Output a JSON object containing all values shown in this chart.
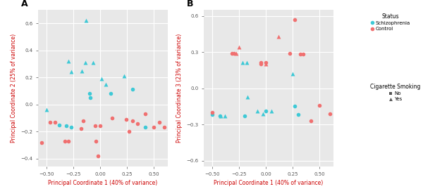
{
  "panel_A": {
    "label": "A",
    "xlabel": "Principal Coordinate 1 (40% of variance)",
    "ylabel": "Principal Coordinate 2 (25% of variance)",
    "xlim": [
      -0.58,
      0.63
    ],
    "ylim": [
      -0.46,
      0.7
    ],
    "xticks": [
      -0.5,
      -0.25,
      0.0,
      0.25,
      0.5
    ],
    "yticks": [
      -0.4,
      -0.2,
      0.0,
      0.2,
      0.4,
      0.6
    ],
    "schizophrenia_circle": [
      [
        -0.38,
        -0.15
      ],
      [
        -0.32,
        -0.16
      ],
      [
        -0.27,
        -0.17
      ],
      [
        -0.1,
        0.08
      ],
      [
        -0.09,
        0.05
      ],
      [
        0.1,
        0.08
      ],
      [
        0.3,
        0.11
      ],
      [
        0.42,
        -0.17
      ]
    ],
    "schizophrenia_triangle": [
      [
        -0.5,
        -0.04
      ],
      [
        -0.3,
        0.32
      ],
      [
        -0.27,
        0.24
      ],
      [
        -0.17,
        0.25
      ],
      [
        -0.14,
        0.31
      ],
      [
        -0.13,
        0.62
      ],
      [
        -0.07,
        0.31
      ],
      [
        0.01,
        0.19
      ],
      [
        0.05,
        0.15
      ],
      [
        0.22,
        0.21
      ]
    ],
    "control_circle": [
      [
        -0.55,
        -0.28
      ],
      [
        -0.47,
        -0.13
      ],
      [
        -0.42,
        -0.13
      ],
      [
        -0.33,
        -0.27
      ],
      [
        -0.3,
        -0.27
      ],
      [
        -0.18,
        -0.18
      ],
      [
        -0.16,
        -0.12
      ],
      [
        -0.05,
        -0.16
      ],
      [
        -0.04,
        -0.27
      ],
      [
        -0.02,
        -0.38
      ],
      [
        0.0,
        -0.16
      ],
      [
        0.11,
        -0.1
      ],
      [
        0.24,
        -0.11
      ],
      [
        0.27,
        -0.2
      ],
      [
        0.3,
        -0.12
      ],
      [
        0.35,
        -0.14
      ],
      [
        0.42,
        -0.07
      ],
      [
        0.5,
        -0.17
      ],
      [
        0.55,
        -0.13
      ],
      [
        0.6,
        -0.17
      ]
    ],
    "control_triangle": []
  },
  "panel_B": {
    "label": "B",
    "xlabel": "Principal Coordinate 1 (40% of variance)",
    "ylabel": "Principal Coordinate 3 (23% of variance)",
    "xlim": [
      -0.58,
      0.63
    ],
    "ylim": [
      -0.65,
      0.65
    ],
    "xticks": [
      -0.5,
      -0.25,
      0.0,
      0.25,
      0.5
    ],
    "yticks": [
      -0.6,
      -0.3,
      0.0,
      0.3,
      0.6
    ],
    "schizophrenia_circle": [
      [
        -0.5,
        -0.22
      ],
      [
        -0.43,
        -0.23
      ],
      [
        -0.2,
        -0.23
      ],
      [
        0.0,
        -0.19
      ],
      [
        0.27,
        -0.15
      ],
      [
        0.3,
        -0.22
      ]
    ],
    "schizophrenia_triangle": [
      [
        -0.42,
        -0.23
      ],
      [
        -0.38,
        -0.23
      ],
      [
        -0.22,
        0.21
      ],
      [
        -0.18,
        0.21
      ],
      [
        -0.17,
        -0.07
      ],
      [
        -0.08,
        -0.19
      ],
      [
        -0.03,
        -0.21
      ],
      [
        0.05,
        -0.19
      ],
      [
        0.25,
        0.12
      ]
    ],
    "control_circle": [
      [
        -0.5,
        -0.2
      ],
      [
        -0.32,
        0.29
      ],
      [
        -0.3,
        0.29
      ],
      [
        -0.05,
        0.21
      ],
      [
        -0.05,
        0.2
      ],
      [
        0.0,
        0.21
      ],
      [
        0.22,
        0.29
      ],
      [
        0.27,
        0.57
      ],
      [
        0.32,
        0.28
      ],
      [
        0.35,
        0.28
      ],
      [
        0.42,
        -0.27
      ],
      [
        0.5,
        -0.14
      ],
      [
        0.6,
        -0.21
      ]
    ],
    "control_triangle": [
      [
        -0.28,
        0.29
      ],
      [
        -0.25,
        0.34
      ],
      [
        0.12,
        0.43
      ],
      [
        0.0,
        0.2
      ]
    ]
  },
  "colors": {
    "schizophrenia": "#3EC9D6",
    "control": "#F07070"
  },
  "background_color": "#E8E8E8",
  "grid_color": "white",
  "label_color": "#CC0000",
  "tick_color": "#555555"
}
